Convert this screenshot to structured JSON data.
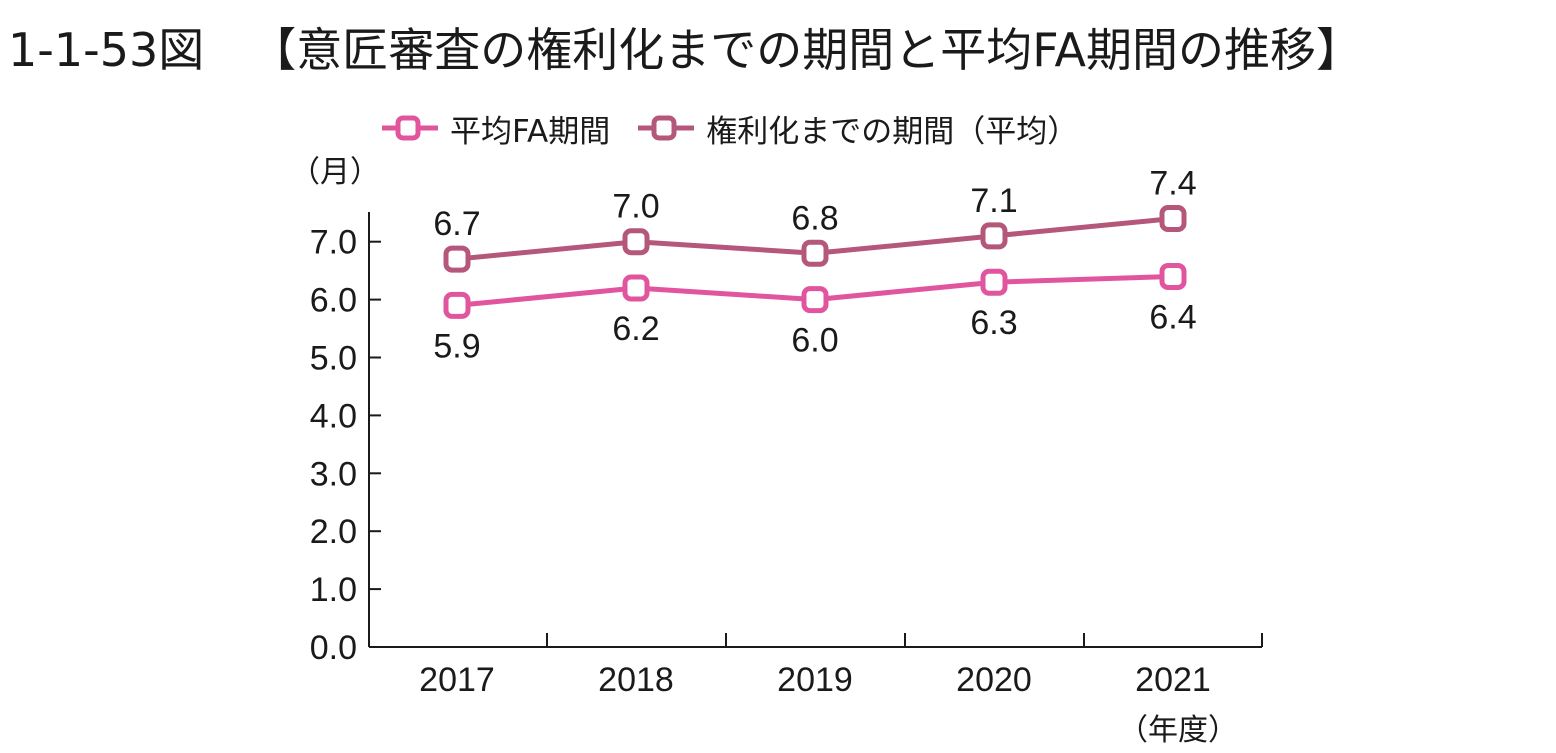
{
  "title": {
    "number": "1-1-53図",
    "text": "【意匠審査の権利化までの期間と平均FA期間の推移】"
  },
  "legend": {
    "items": [
      {
        "label": "平均FA期間",
        "color": "#e0559e"
      },
      {
        "label": "権利化までの期間（平均）",
        "color": "#b5577a"
      }
    ]
  },
  "chart_data": {
    "type": "line",
    "categories": [
      "2017",
      "2018",
      "2019",
      "2020",
      "2021"
    ],
    "series": [
      {
        "name": "平均FA期間",
        "values": [
          5.9,
          6.2,
          6.0,
          6.3,
          6.4
        ],
        "color": "#e0559e"
      },
      {
        "name": "権利化までの期間（平均）",
        "values": [
          6.7,
          7.0,
          6.8,
          7.1,
          7.4
        ],
        "color": "#b5577a"
      }
    ],
    "data_labels": {
      "平均FA期間": [
        "5.9",
        "6.2",
        "6.0",
        "6.3",
        "6.4"
      ],
      "権利化までの期間（平均）": [
        "6.7",
        "7.0",
        "6.8",
        "7.1",
        "7.4"
      ]
    },
    "y_ticks": [
      "0.0",
      "1.0",
      "2.0",
      "3.0",
      "4.0",
      "5.0",
      "6.0",
      "7.0"
    ],
    "ylim": [
      0,
      7.4
    ],
    "ylabel": "（月）",
    "xlabel": "（年度）",
    "grid": false,
    "legend_position": "top"
  }
}
